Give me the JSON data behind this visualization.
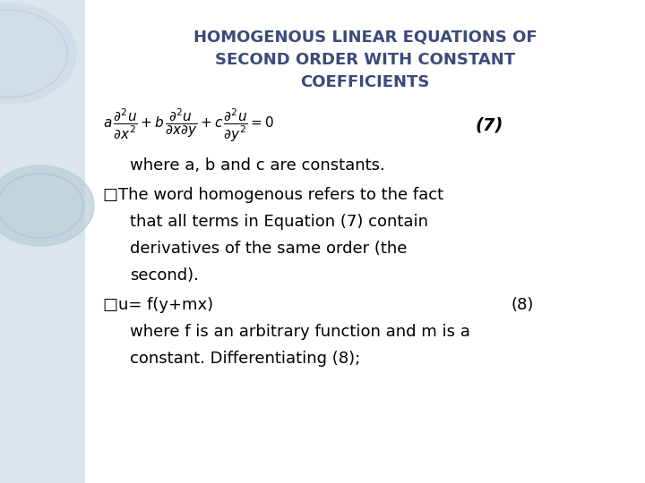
{
  "title_line1": "HOMOGENOUS LINEAR EQUATIONS OF",
  "title_line2": "SECOND ORDER WITH CONSTANT",
  "title_line3": "COEFFICIENTS",
  "title_color": "#3d4a7a",
  "title_fontsize": 13,
  "bg_color": "#ffffff",
  "left_panel_color": "#c5d5e0",
  "body_fontsize": 13,
  "body_color": "#000000",
  "equation_label": "(7)",
  "equation_label2": "(8)",
  "text_line1": "where a, b and c are constants.",
  "text_line2_bullet": "□The word homogenous refers to the fact",
  "text_line3": "that all terms in Equation (7) contain",
  "text_line4": "derivatives of the same order (the",
  "text_line5": "second).",
  "text_line6_bullet": "□u= f(y+mx)",
  "text_line7": "where f is an arbitrary function and m is a",
  "text_line8": "constant. Differentiating (8);"
}
